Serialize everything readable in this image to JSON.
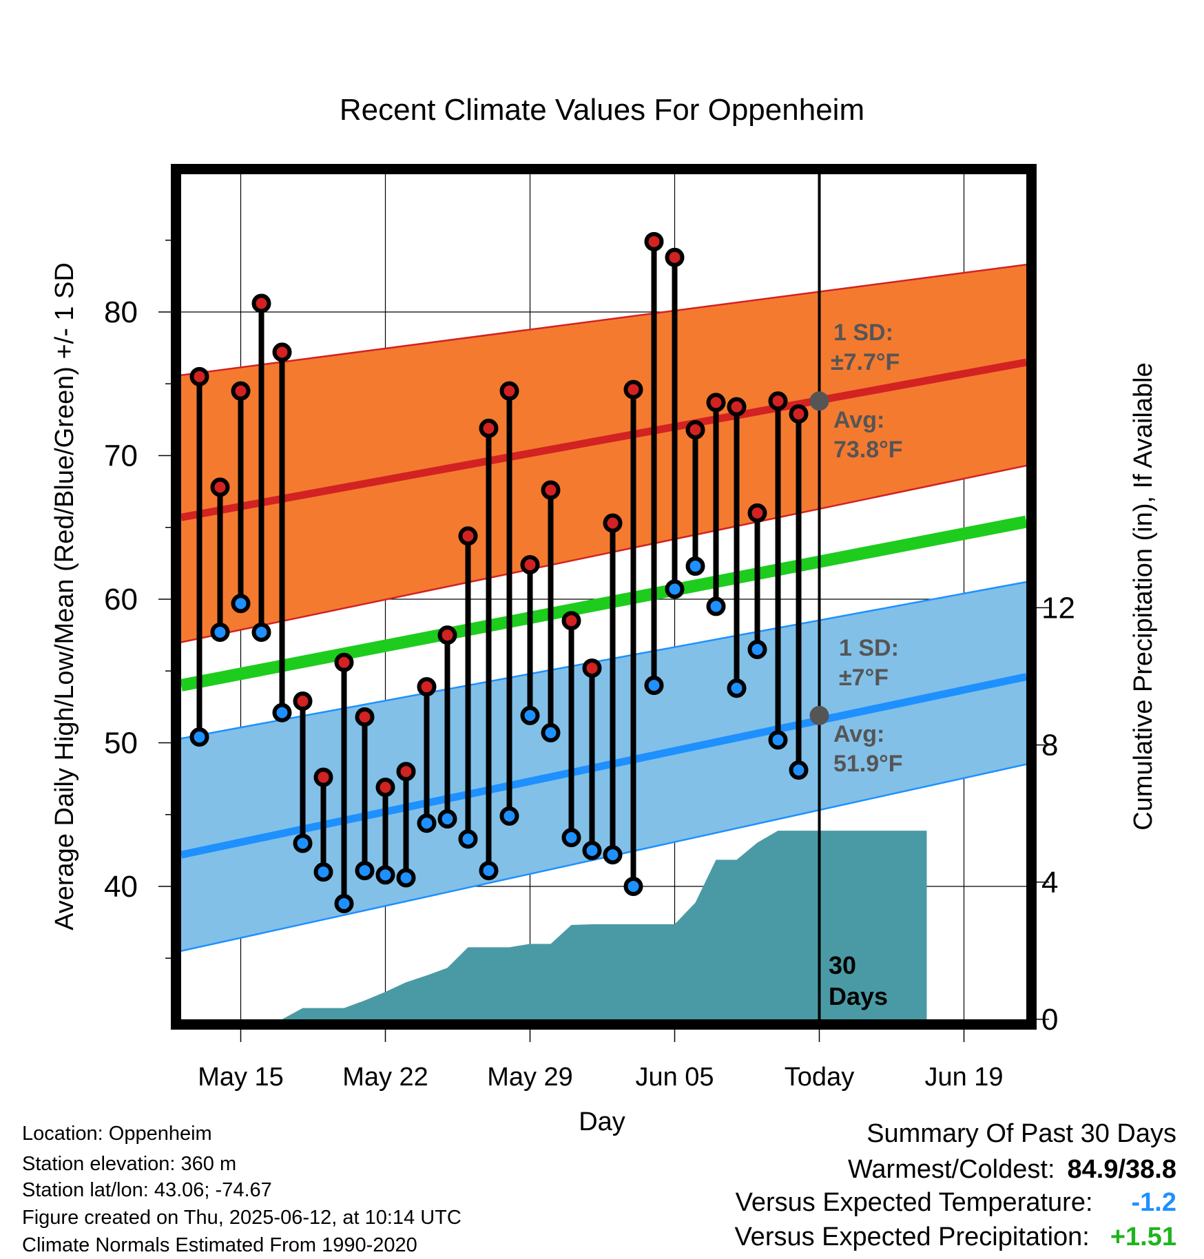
{
  "chart_data": {
    "type": "line",
    "title": "Recent Climate Values For Oppenheim",
    "xlabel": "Day",
    "ylabel": "Average Daily High/Low/Mean (Red/Blue/Green) +/- 1 SD",
    "y2label": "Cumulative Precipitation (in), If Available",
    "ylim": [
      31,
      91
    ],
    "y2lim": [
      0,
      31
    ],
    "xlim": [
      -7.2,
      33.2
    ],
    "x_ticks": [
      {
        "day": 0,
        "label": "May 15"
      },
      {
        "day": 7,
        "label": "May 22"
      },
      {
        "day": 14,
        "label": "May 29"
      },
      {
        "day": 21,
        "label": "Jun 05"
      },
      {
        "day": 28,
        "label": "Today"
      },
      {
        "day": 35,
        "label": "Jun 19"
      }
    ],
    "y_ticks": [
      40,
      50,
      60,
      70,
      80
    ],
    "y2_ticks": [
      0,
      4,
      8,
      12
    ],
    "grid": true,
    "today_day": 28,
    "today_label": "30 Days",
    "observed": {
      "days": [
        -2,
        -1,
        0,
        1,
        2,
        3,
        4,
        5,
        6,
        7,
        8,
        9,
        10,
        11,
        12,
        13,
        14,
        15,
        16,
        17,
        18,
        19,
        20,
        21,
        22,
        23,
        24,
        25,
        26,
        27
      ],
      "highs": [
        75.5,
        67.8,
        74.5,
        80.6,
        77.2,
        52.9,
        47.6,
        55.6,
        51.8,
        46.9,
        48.0,
        53.9,
        57.5,
        64.4,
        71.9,
        74.5,
        62.4,
        67.6,
        58.5,
        55.2,
        65.3,
        74.6,
        84.9,
        83.8,
        71.8,
        73.7,
        73.4,
        66.0,
        73.8,
        72.9
      ],
      "lows": [
        50.4,
        57.7,
        59.7,
        57.7,
        52.1,
        43.0,
        41.0,
        38.8,
        41.1,
        40.8,
        40.6,
        44.4,
        44.7,
        43.3,
        41.1,
        44.9,
        51.9,
        50.7,
        43.4,
        42.5,
        42.2,
        40.0,
        54.0,
        60.7,
        62.3,
        59.5,
        53.8,
        56.5,
        50.2,
        48.1
      ]
    },
    "normals": {
      "high_avg_range": [
        65.7,
        76.5
      ],
      "high_sd_band_range": [
        [
          57.0,
          69.3
        ],
        [
          75.6,
          83.3
        ]
      ],
      "low_avg_range": [
        42.2,
        54.6
      ],
      "low_sd_band_range": [
        [
          35.5,
          48.5
        ],
        [
          50.3,
          61.2
        ]
      ],
      "mean_avg_range": [
        54.0,
        65.4
      ]
    },
    "annotations": {
      "high_sd": "1 SD:",
      "high_sd_value": "±7.7°F",
      "high_avg": "Avg:",
      "high_avg_value": "73.8°F",
      "high_avg_today": 73.8,
      "low_sd": "1 SD:",
      "low_sd_value": "±7°F",
      "low_avg": "Avg:",
      "low_avg_value": "51.9°F",
      "low_avg_today": 51.9
    },
    "precipitation": {
      "days": [
        -2.3,
        -1,
        0,
        1,
        2,
        3,
        4,
        5,
        6,
        7,
        8,
        9,
        10,
        11,
        12,
        13,
        14,
        15,
        16,
        17,
        18,
        19,
        20,
        21,
        22,
        23,
        24,
        25,
        26,
        27,
        28,
        33.2
      ],
      "cumulative": [
        0,
        0,
        0,
        0,
        0,
        0.33,
        0.33,
        0.33,
        0.55,
        0.8,
        1.08,
        1.28,
        1.5,
        2.1,
        2.1,
        2.1,
        2.2,
        2.2,
        2.75,
        2.77,
        2.77,
        2.77,
        2.77,
        2.77,
        3.4,
        4.65,
        4.65,
        5.15,
        5.5,
        5.5,
        5.5,
        5.5
      ]
    }
  },
  "info": {
    "location": "Location: Oppenheim",
    "elevation": "Station elevation: 360 m",
    "latlon": "Station lat/lon: 43.06; -74.67",
    "created": "Figure created on Thu, 2025-06-12, at 10:14 UTC",
    "normals": "Climate Normals Estimated From 1990-2020"
  },
  "summary": {
    "title": "Summary Of Past 30 Days",
    "warm_cold_label": "Warmest/Coldest:",
    "warm_cold_value": "84.9/38.8",
    "temp_label": "Versus Expected Temperature:",
    "temp_value": "-1.2",
    "temp_color": "#1e90ff",
    "precip_label": "Versus Expected Precipitation:",
    "precip_value": "+1.51",
    "precip_color": "#1eb41e"
  },
  "colors": {
    "high_band": "#f47a30",
    "high_avg": "#d22222",
    "low_band": "#82c0e8",
    "low_avg": "#1e90ff",
    "mean_avg": "#1ecc1e",
    "precip": "#4a9aa5",
    "high_dot": "#d22222",
    "low_dot": "#1e90ff",
    "avg_marker": "#555555"
  }
}
